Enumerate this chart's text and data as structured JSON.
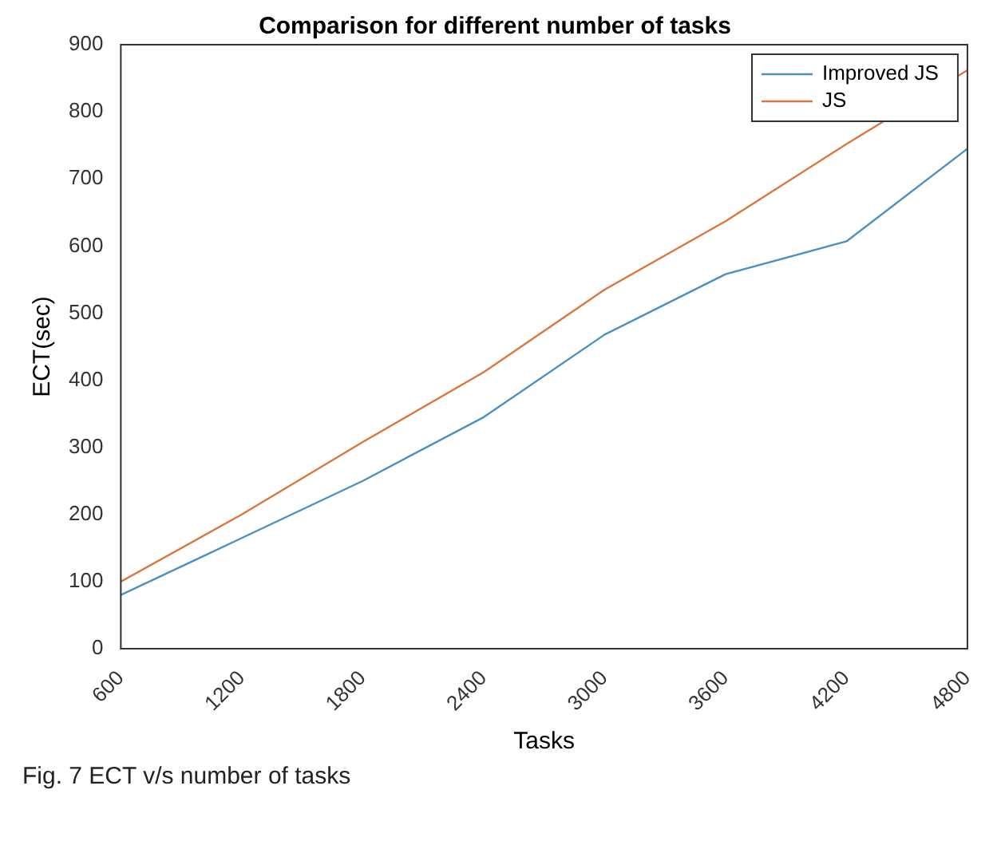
{
  "chart_data": {
    "type": "line",
    "title": "Comparison for different number of tasks",
    "xlabel": "Tasks",
    "ylabel": "ECT(sec)",
    "x": [
      600,
      1200,
      1800,
      2400,
      3000,
      3600,
      4200,
      4800
    ],
    "series": [
      {
        "name": "Improved JS",
        "color": "#4a90c4",
        "values": [
          80,
          165,
          250,
          345,
          468,
          558,
          607,
          745
        ]
      },
      {
        "name": "JS",
        "color": "#d9773f",
        "values": [
          100,
          200,
          308,
          412,
          535,
          637,
          752,
          862
        ]
      }
    ],
    "xlim": [
      600,
      4800
    ],
    "xticks": [
      600,
      1200,
      1800,
      2400,
      3000,
      3600,
      4200,
      4800
    ],
    "ylim": [
      0,
      900
    ],
    "yticks": [
      0,
      100,
      200,
      300,
      400,
      500,
      600,
      700,
      800,
      900
    ],
    "grid": false,
    "legend": "top right",
    "marker": "none",
    "line_style": "solid",
    "annotations": [
      "Fig. 7 ECT v/s number of tasks"
    ]
  }
}
